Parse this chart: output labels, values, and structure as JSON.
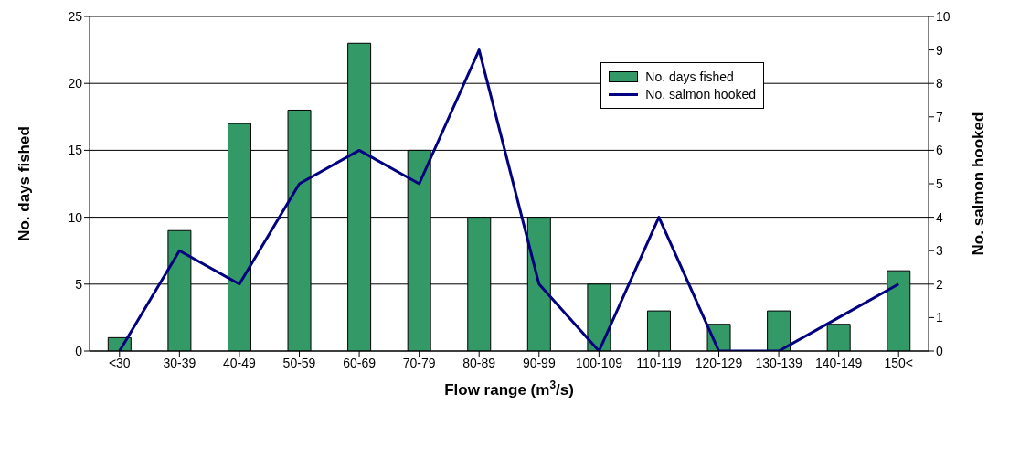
{
  "chart_data": {
    "type": "bar",
    "xlabel": "Flow range (m$^{3}$/s)",
    "ylabel": "No. days fished",
    "y2label": "No. salmon hooked",
    "categories": [
      "<30",
      "30-39",
      "40-49",
      "50-59",
      "60-69",
      "70-79",
      "80-89",
      "90-99",
      "100-109",
      "110-119",
      "120-129",
      "130-139",
      "140-149",
      "150<"
    ],
    "series": [
      {
        "name": "No. days fished",
        "color": "#339966",
        "values": [
          1,
          9,
          17,
          18,
          23,
          15,
          10,
          10,
          5,
          3,
          2,
          3,
          2,
          6
        ]
      },
      {
        "name": "No. salmon hooked",
        "type": "line",
        "axis": "y2",
        "color": "#000080",
        "values": [
          0,
          3,
          2,
          5,
          6,
          5,
          9,
          2,
          0,
          4,
          0,
          0,
          1,
          2
        ]
      }
    ],
    "ylim": [
      0,
      25
    ],
    "yticks": [
      0,
      5,
      10,
      15,
      20,
      25
    ],
    "y2lim": [
      0,
      10
    ],
    "y2ticks": [
      0,
      1,
      2,
      3,
      4,
      5,
      6,
      7,
      8,
      9,
      10
    ],
    "grid": "y",
    "legend": "top right",
    "marker": "none",
    "line_style": "solid"
  }
}
